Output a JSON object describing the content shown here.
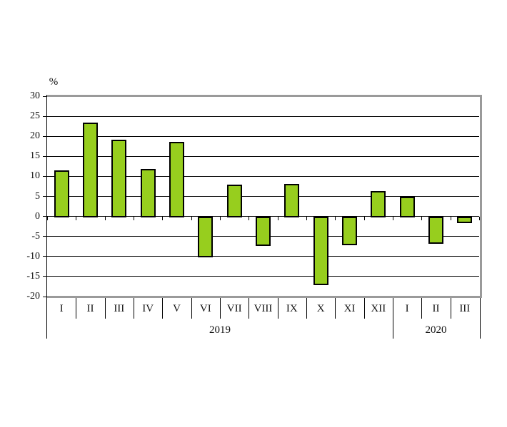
{
  "chart_data": {
    "type": "bar",
    "title": "",
    "ylabel": "%",
    "xlabel": "",
    "ylim": [
      -20,
      30
    ],
    "ytick_step": 5,
    "yticks": [
      30,
      25,
      20,
      15,
      10,
      5,
      0,
      -5,
      -10,
      -15,
      -20
    ],
    "grid": true,
    "legend": "none",
    "categories": [
      "I",
      "II",
      "III",
      "IV",
      "V",
      "VI",
      "VII",
      "VIII",
      "IX",
      "X",
      "XI",
      "XII",
      "I",
      "II",
      "III"
    ],
    "values": [
      11.5,
      23.4,
      19.2,
      11.8,
      18.6,
      -10.0,
      7.9,
      -7.2,
      8.1,
      -16.9,
      -7.1,
      6.3,
      4.9,
      -6.6,
      -1.5
    ],
    "year_groups": [
      {
        "label": "2019",
        "span": 12
      },
      {
        "label": "2020",
        "span": 3
      }
    ]
  },
  "colors": {
    "bar_fill": "#97CE1E",
    "bar_border": "#000000",
    "gridline": "#000000",
    "axis_line": "#000000",
    "plot_border": "#9A9A9A",
    "text": "#111111",
    "background": "#FFFFFF"
  }
}
